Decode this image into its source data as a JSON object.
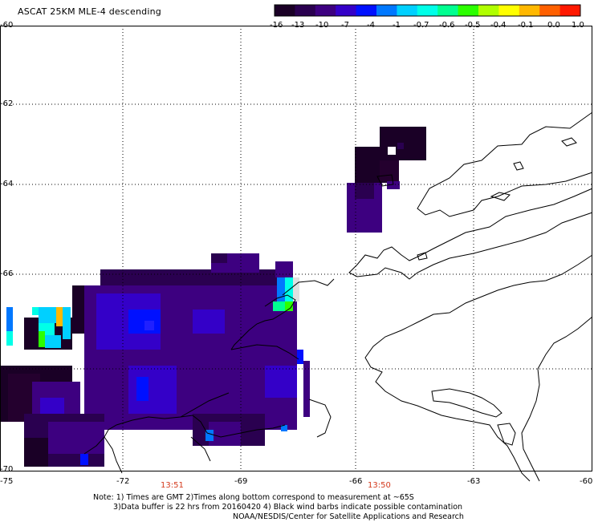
{
  "title": "ASCAT 25KM MLE-4 descending",
  "colorbar": {
    "colors": [
      "#1a0026",
      "#2a0050",
      "#3d0080",
      "#3400c8",
      "#0010ff",
      "#0078ff",
      "#00d0ff",
      "#00ffe8",
      "#00ff90",
      "#2cff00",
      "#b0ff00",
      "#ffff00",
      "#ffb800",
      "#ff6000",
      "#ff1800"
    ],
    "tick_labels": [
      "-16",
      "-13",
      "-10",
      "-7",
      "-4",
      "-1",
      "-0.7",
      "-0.6",
      "-0.5",
      "-0.4",
      "-0.1",
      "0.0",
      "1.0"
    ]
  },
  "axes": {
    "x_ticks": [
      "-75",
      "-72",
      "-69",
      "-66",
      "-63",
      "-60"
    ],
    "y_ticks": [
      "-60",
      "-62",
      "-64",
      "-66",
      "-68",
      "-70"
    ],
    "y_labels_shown": [
      "-60",
      "-62",
      "-64",
      "-66",
      "-70"
    ],
    "time_labels": [
      "13:51",
      "13:50"
    ]
  },
  "notes": {
    "line1": "Note: 1) Times are GMT 2)Times along bottom correspond to measurement at ~65S",
    "line2": "3)Data buffer is 22 hrs from 20160420 4) Black wind barbs indicate possible contamination",
    "line3": "NOAA/NESDIS/Center for Satellite Applications and Research"
  }
}
